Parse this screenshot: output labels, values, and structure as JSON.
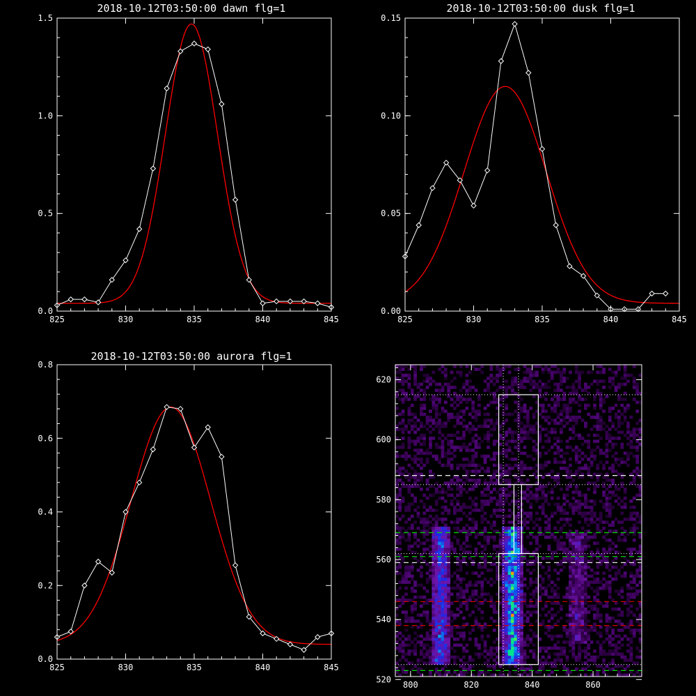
{
  "colors": {
    "background": "#000000",
    "data_line": "#ffffff",
    "fit_line": "#ff0000",
    "frame": "#ffffff"
  },
  "chart_data": [
    {
      "type": "line",
      "title": "2018-10-12T03:50:00 dawn flg=1",
      "xlim": [
        825,
        845
      ],
      "ylim": [
        0,
        1.5
      ],
      "xticks": [
        "825",
        "830",
        "835",
        "840",
        "845"
      ],
      "yticks": [
        "0.0",
        "0.5",
        "1.0",
        "1.5"
      ],
      "series": [
        {
          "style": "white-diamonds",
          "x": [
            825,
            826,
            827,
            828,
            829,
            830,
            831,
            832,
            833,
            834,
            835,
            836,
            837,
            838,
            839,
            840,
            841,
            842,
            843,
            844,
            845
          ],
          "y": [
            0.03,
            0.06,
            0.06,
            0.045,
            0.16,
            0.26,
            0.42,
            0.73,
            1.14,
            1.33,
            1.37,
            1.34,
            1.06,
            0.57,
            0.16,
            0.04,
            0.05,
            0.05,
            0.05,
            0.04,
            0.02
          ]
        },
        {
          "style": "red-gaussian-fit",
          "gaussian": {
            "amplitude": 1.43,
            "center": 834.8,
            "sigma": 1.9,
            "offset": 0.04
          }
        }
      ]
    },
    {
      "type": "line",
      "title": "2018-10-12T03:50:00 dusk flg=1",
      "xlim": [
        825,
        845
      ],
      "ylim": [
        0,
        0.15
      ],
      "xticks": [
        "825",
        "830",
        "835",
        "840",
        "845"
      ],
      "yticks": [
        "0.00",
        "0.05",
        "0.10",
        "0.15"
      ],
      "series": [
        {
          "style": "white-diamonds",
          "x": [
            825,
            826,
            827,
            828,
            829,
            830,
            831,
            832,
            833,
            834,
            835,
            836,
            837,
            838,
            839,
            840,
            841,
            842,
            843,
            844
          ],
          "y": [
            0.028,
            0.044,
            0.063,
            0.076,
            0.067,
            0.054,
            0.072,
            0.128,
            0.147,
            0.122,
            0.083,
            0.044,
            0.023,
            0.018,
            0.008,
            0.001,
            0.001,
            0.001,
            0.009,
            0.009
          ]
        },
        {
          "style": "red-gaussian-fit",
          "gaussian": {
            "amplitude": 0.111,
            "center": 832.3,
            "sigma": 3.0,
            "offset": 0.004
          }
        }
      ]
    },
    {
      "type": "line",
      "title": "2018-10-12T03:50:00 aurora flg=1",
      "xlim": [
        825,
        845
      ],
      "ylim": [
        0,
        0.8
      ],
      "xticks": [
        "825",
        "830",
        "835",
        "840",
        "845"
      ],
      "yticks": [
        "0.0",
        "0.2",
        "0.4",
        "0.6",
        "0.8"
      ],
      "series": [
        {
          "style": "white-diamonds",
          "x": [
            825,
            826,
            827,
            828,
            829,
            830,
            831,
            832,
            833,
            834,
            835,
            836,
            837,
            838,
            839,
            840,
            841,
            842,
            843,
            844,
            845
          ],
          "y": [
            0.06,
            0.075,
            0.2,
            0.265,
            0.235,
            0.4,
            0.48,
            0.57,
            0.685,
            0.68,
            0.575,
            0.63,
            0.55,
            0.255,
            0.115,
            0.07,
            0.055,
            0.04,
            0.025,
            0.06,
            0.07
          ]
        },
        {
          "style": "red-gaussian-fit",
          "gaussian": {
            "amplitude": 0.645,
            "center": 833.3,
            "sigma": 2.9,
            "offset": 0.04
          }
        }
      ]
    },
    {
      "type": "heatmap",
      "title": "",
      "xlim": [
        795,
        876
      ],
      "ylim": [
        521,
        625
      ],
      "xticks": [
        "800",
        "820",
        "840",
        "860"
      ],
      "yticks": [
        "520",
        "540",
        "560",
        "580",
        "600",
        "620"
      ],
      "bright_columns": [
        {
          "x_center": 810,
          "half_width": 3,
          "y_from": 525,
          "y_to": 570,
          "peak": 0.45
        },
        {
          "x_center": 833.5,
          "half_width": 3,
          "y_from": 525,
          "y_to": 570,
          "peak": 0.65
        },
        {
          "x_center": 855,
          "half_width": 3,
          "y_from": 532,
          "y_to": 568,
          "peak": 0.2
        }
      ],
      "hot_spots": [
        {
          "x": 833,
          "y": 529,
          "level": 1.0
        },
        {
          "x": 835,
          "y": 563,
          "level": 0.85
        },
        {
          "x": 834,
          "y": 565,
          "level": 0.8
        }
      ],
      "boxes": [
        {
          "x0": 829,
          "x1": 842,
          "y0": 525,
          "y1": 562
        },
        {
          "x0": 829,
          "x1": 842,
          "y0": 585,
          "y1": 615
        }
      ],
      "vertical_dotted_x": [
        830.5,
        835.5
      ],
      "narrow_channel_x": [
        834,
        836.5
      ],
      "horizontal_dashed": [
        {
          "y": 523,
          "color": "#00dd00",
          "dash": "dashed"
        },
        {
          "y": 538,
          "color": "#dd0000",
          "dash": "dashed"
        },
        {
          "y": 546,
          "color": "#dd0000",
          "dash": "dashed"
        },
        {
          "y": 559,
          "color": "#ffffff",
          "dash": "dashed"
        },
        {
          "y": 561,
          "color": "#00dd00",
          "dash": "dashed"
        },
        {
          "y": 569,
          "color": "#00dd00",
          "dash": "dashed"
        },
        {
          "y": 588,
          "color": "#ffffff",
          "dash": "dashed"
        }
      ],
      "horizontal_dotted": [
        525,
        562,
        585,
        615
      ]
    }
  ]
}
